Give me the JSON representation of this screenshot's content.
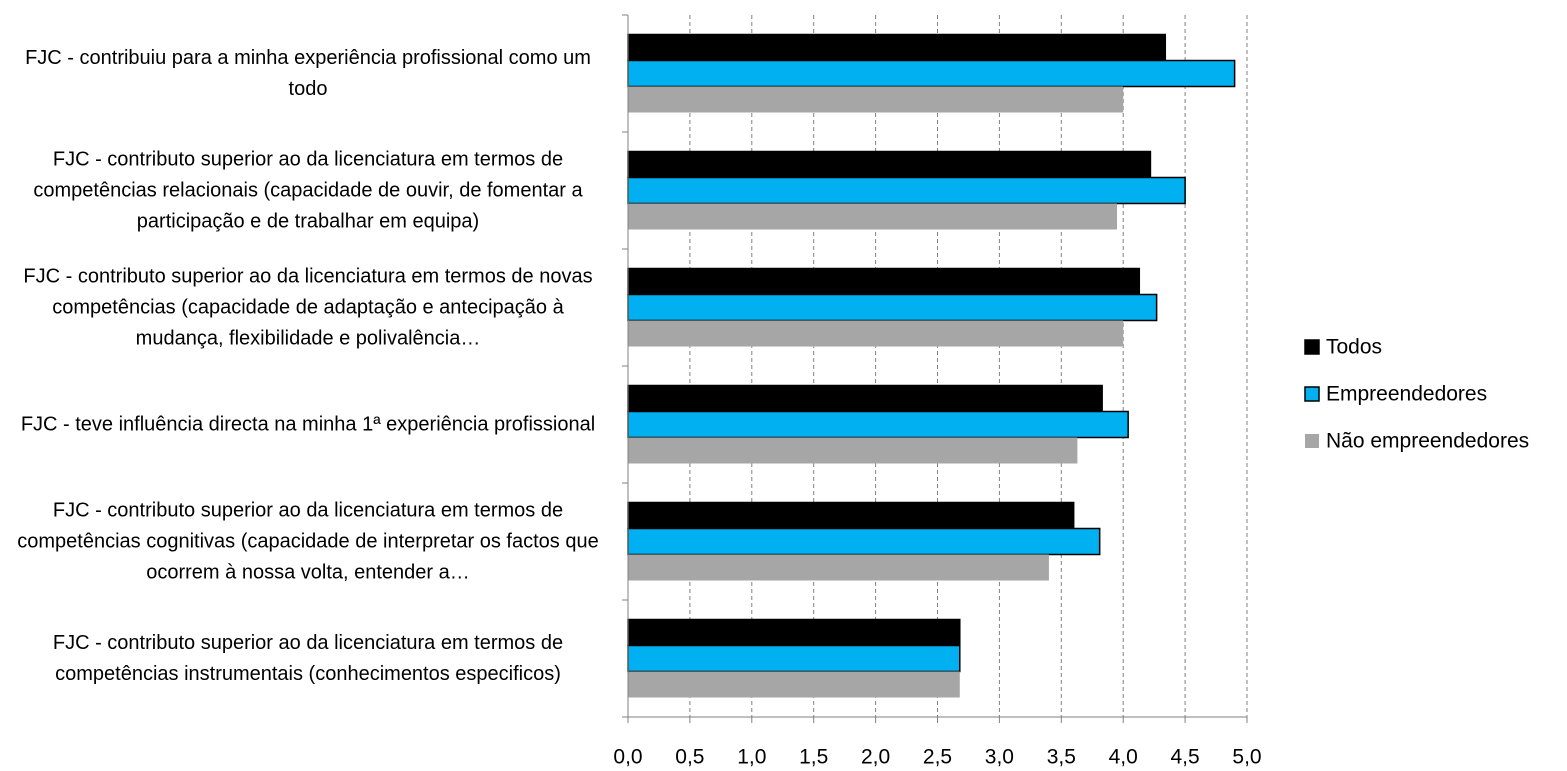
{
  "chart_data": {
    "type": "barh",
    "categories": [
      "FJC - contribuiu para a minha experiência profissional como um todo",
      "FJC - contributo superior ao da licenciatura em termos de competências relacionais (capacidade de ouvir, de fomentar a participação e de trabalhar em equipa)",
      "FJC - contributo superior ao da licenciatura em termos de novas competências (capacidade de adaptação e antecipação à mudança, flexibilidade e polivalência…",
      "FJC - teve influência directa na minha 1ª experiência profissional",
      "FJC - contributo superior ao da licenciatura em termos de competências cognitivas (capacidade de interpretar os factos que ocorrem à nossa volta, entender a…",
      "FJC - contributo superior ao da licenciatura em termos de competências instrumentais (conhecimentos especificos)"
    ],
    "series": [
      {
        "name": "Todos",
        "color": "#000000",
        "edgecolor": "#000000",
        "values": [
          4.34,
          4.22,
          4.13,
          3.83,
          3.6,
          2.68
        ]
      },
      {
        "name": "Empreendedores",
        "color": "#00b0f0",
        "edgecolor": "#000000",
        "values": [
          4.9,
          4.5,
          4.27,
          4.04,
          3.81,
          2.68
        ]
      },
      {
        "name": "Não empreendedores",
        "color": "#a6a6a6",
        "values": [
          4.0,
          3.95,
          4.0,
          3.63,
          3.4,
          2.68
        ]
      }
    ],
    "xlim": [
      0,
      5
    ],
    "xticks": [
      {
        "value": 0,
        "label": "0,0"
      },
      {
        "value": 0.5,
        "label": "0,5"
      },
      {
        "value": 1,
        "label": "1,0"
      },
      {
        "value": 1.5,
        "label": "1,5"
      },
      {
        "value": 2,
        "label": "2,0"
      },
      {
        "value": 2.5,
        "label": "2,5"
      },
      {
        "value": 3,
        "label": "3,0"
      },
      {
        "value": 3.5,
        "label": "3,5"
      },
      {
        "value": 4,
        "label": "4,0"
      },
      {
        "value": 4.5,
        "label": "4,5"
      },
      {
        "value": 5,
        "label": "5,0"
      }
    ],
    "grid": true,
    "legend": "right"
  }
}
